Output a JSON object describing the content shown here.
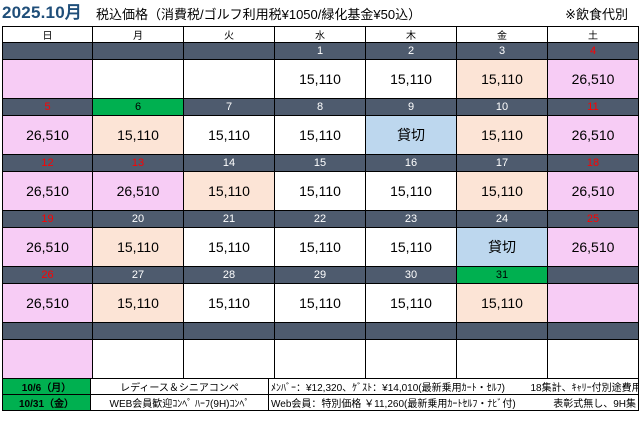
{
  "header": {
    "month": "2025.10月",
    "tax_note": "税込価格（消費税/ゴルフ利用税¥1050/緑化基金¥50込）",
    "meal_note": "※飲食代別"
  },
  "weekdays": [
    "日",
    "月",
    "火",
    "水",
    "木",
    "金",
    "土"
  ],
  "weeks": [
    {
      "days": [
        {
          "num": "",
          "red": false,
          "today": false
        },
        {
          "num": "",
          "red": false,
          "today": false
        },
        {
          "num": "",
          "red": false,
          "today": false
        },
        {
          "num": "1",
          "red": false,
          "today": false
        },
        {
          "num": "2",
          "red": false,
          "today": false
        },
        {
          "num": "3",
          "red": false,
          "today": false
        },
        {
          "num": "4",
          "red": true,
          "today": false
        }
      ],
      "cells": [
        {
          "text": "",
          "bg": "pink"
        },
        {
          "text": "",
          "bg": "white"
        },
        {
          "text": "",
          "bg": "white"
        },
        {
          "text": "15,110",
          "bg": "white"
        },
        {
          "text": "15,110",
          "bg": "white"
        },
        {
          "text": "15,110",
          "bg": "peach"
        },
        {
          "text": "26,510",
          "bg": "pink"
        }
      ]
    },
    {
      "days": [
        {
          "num": "5",
          "red": true,
          "today": false
        },
        {
          "num": "6",
          "red": false,
          "today": true
        },
        {
          "num": "7",
          "red": false,
          "today": false
        },
        {
          "num": "8",
          "red": false,
          "today": false
        },
        {
          "num": "9",
          "red": false,
          "today": false
        },
        {
          "num": "10",
          "red": false,
          "today": false
        },
        {
          "num": "11",
          "red": true,
          "today": false
        }
      ],
      "cells": [
        {
          "text": "26,510",
          "bg": "pink"
        },
        {
          "text": "15,110",
          "bg": "peach"
        },
        {
          "text": "15,110",
          "bg": "white"
        },
        {
          "text": "15,110",
          "bg": "white"
        },
        {
          "text": "貸切",
          "bg": "blue"
        },
        {
          "text": "15,110",
          "bg": "peach"
        },
        {
          "text": "26,510",
          "bg": "pink"
        }
      ]
    },
    {
      "days": [
        {
          "num": "12",
          "red": true,
          "today": false
        },
        {
          "num": "13",
          "red": true,
          "today": false
        },
        {
          "num": "14",
          "red": false,
          "today": false
        },
        {
          "num": "15",
          "red": false,
          "today": false
        },
        {
          "num": "16",
          "red": false,
          "today": false
        },
        {
          "num": "17",
          "red": false,
          "today": false
        },
        {
          "num": "18",
          "red": true,
          "today": false
        }
      ],
      "cells": [
        {
          "text": "26,510",
          "bg": "pink"
        },
        {
          "text": "26,510",
          "bg": "pink"
        },
        {
          "text": "15,110",
          "bg": "peach"
        },
        {
          "text": "15,110",
          "bg": "white"
        },
        {
          "text": "15,110",
          "bg": "white"
        },
        {
          "text": "15,110",
          "bg": "peach"
        },
        {
          "text": "26,510",
          "bg": "pink"
        }
      ]
    },
    {
      "days": [
        {
          "num": "19",
          "red": true,
          "today": false
        },
        {
          "num": "20",
          "red": false,
          "today": false
        },
        {
          "num": "21",
          "red": false,
          "today": false
        },
        {
          "num": "22",
          "red": false,
          "today": false
        },
        {
          "num": "23",
          "red": false,
          "today": false
        },
        {
          "num": "24",
          "red": false,
          "today": false
        },
        {
          "num": "25",
          "red": true,
          "today": false
        }
      ],
      "cells": [
        {
          "text": "26,510",
          "bg": "pink"
        },
        {
          "text": "15,110",
          "bg": "peach"
        },
        {
          "text": "15,110",
          "bg": "white"
        },
        {
          "text": "15,110",
          "bg": "white"
        },
        {
          "text": "15,110",
          "bg": "white"
        },
        {
          "text": "貸切",
          "bg": "blue"
        },
        {
          "text": "26,510",
          "bg": "pink"
        }
      ]
    },
    {
      "days": [
        {
          "num": "26",
          "red": true,
          "today": false
        },
        {
          "num": "27",
          "red": false,
          "today": false
        },
        {
          "num": "28",
          "red": false,
          "today": false
        },
        {
          "num": "29",
          "red": false,
          "today": false
        },
        {
          "num": "30",
          "red": false,
          "today": false
        },
        {
          "num": "31",
          "red": false,
          "today": true
        },
        {
          "num": "",
          "red": false,
          "today": false
        }
      ],
      "cells": [
        {
          "text": "26,510",
          "bg": "pink"
        },
        {
          "text": "15,110",
          "bg": "peach"
        },
        {
          "text": "15,110",
          "bg": "white"
        },
        {
          "text": "15,110",
          "bg": "white"
        },
        {
          "text": "15,110",
          "bg": "white"
        },
        {
          "text": "15,110",
          "bg": "peach"
        },
        {
          "text": "",
          "bg": "pink"
        }
      ]
    },
    {
      "days": [
        {
          "num": "",
          "red": false,
          "today": false
        },
        {
          "num": "",
          "red": false,
          "today": false
        },
        {
          "num": "",
          "red": false,
          "today": false
        },
        {
          "num": "",
          "red": false,
          "today": false
        },
        {
          "num": "",
          "red": false,
          "today": false
        },
        {
          "num": "",
          "red": false,
          "today": false
        },
        {
          "num": "",
          "red": false,
          "today": false
        }
      ],
      "cells": [
        {
          "text": "",
          "bg": "pink"
        },
        {
          "text": "",
          "bg": "white"
        },
        {
          "text": "",
          "bg": "white"
        },
        {
          "text": "",
          "bg": "white"
        },
        {
          "text": "",
          "bg": "white"
        },
        {
          "text": "",
          "bg": "white"
        },
        {
          "text": "",
          "bg": "white"
        }
      ]
    }
  ],
  "events": [
    {
      "date": "10/6（月）",
      "name": "レディース＆シニアコンペ",
      "price": "ﾒﾝﾊﾞｰ：¥12,320、ｹﾞｽﾄ：¥14,010(最新乗用ｶｰﾄ・ｾﾙﾌ)",
      "extra": "18集計、ｷｬﾘｰ付別途費用"
    },
    {
      "date": "10/31（金）",
      "name": "WEB会員歓迎ｺﾝﾍﾟ ﾊｰﾌ(9H)ｺﾝﾍﾟ",
      "price": "Web会員：特別価格 ￥11,260(最新乗用ｶｰﾄｾﾙﾌ・ﾅﾋﾞ付)",
      "extra": "表彰式無し、9H集"
    }
  ]
}
